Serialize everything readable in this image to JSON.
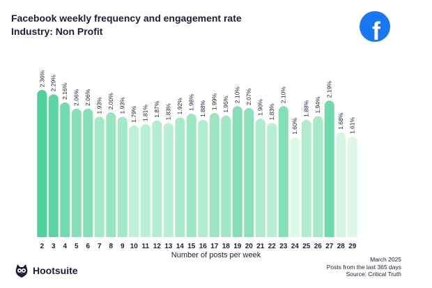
{
  "header": {
    "title": "Facebook weekly frequency and engagement rate",
    "subtitle": "Industry: Non Profit"
  },
  "brand": {
    "name": "Hootsuite",
    "icon": "hootsuite-owl-icon"
  },
  "logo": {
    "icon": "facebook-icon",
    "color": "#1877F2",
    "glyph": "f"
  },
  "footer": {
    "date": "March 2025",
    "period": "Posts from the last 365 days",
    "source": "Source: Critical Truth"
  },
  "chart_data": {
    "type": "bar",
    "title": "Facebook weekly frequency and engagement rate",
    "subtitle": "Industry: Non Profit",
    "xlabel": "Number of posts per week",
    "ylabel": "",
    "ylim": [
      0,
      2.36
    ],
    "grid": false,
    "categories": [
      "2",
      "3",
      "4",
      "5",
      "6",
      "7",
      "8",
      "9",
      "10",
      "11",
      "12",
      "13",
      "14",
      "15",
      "16",
      "17",
      "18",
      "19",
      "20",
      "21",
      "22",
      "23",
      "24",
      "25",
      "26",
      "27",
      "28",
      "29"
    ],
    "values": [
      2.36,
      2.29,
      2.16,
      2.06,
      2.06,
      1.93,
      2.0,
      1.93,
      1.79,
      1.81,
      1.87,
      1.83,
      1.92,
      1.98,
      1.88,
      1.99,
      1.95,
      2.1,
      2.07,
      1.9,
      1.83,
      2.1,
      1.6,
      1.88,
      1.94,
      2.19,
      1.68,
      1.61
    ],
    "labels": [
      "2.36%",
      "2.29%",
      "2.16%",
      "2.06%",
      "2.06%",
      "1.93%",
      "2.00%",
      "1.93%",
      "1.79%",
      "1.81%",
      "1.87%",
      "1.83%",
      "1.92%",
      "1.98%",
      "1.88%",
      "1.99%",
      "1.95%",
      "2.10%",
      "2.07%",
      "1.90%",
      "1.83%",
      "2.10%",
      "1.60%",
      "1.88%",
      "1.94%",
      "2.19%",
      "1.68%",
      "1.61%"
    ],
    "colors": [
      "#4fd19c",
      "#5bd6a3",
      "#74dbae",
      "#84dfb6",
      "#84dfb6",
      "#a3e9c7",
      "#97e5be",
      "#a3e9c7",
      "#bdf0d6",
      "#bbefd4",
      "#b2edd0",
      "#b8eed3",
      "#a9eaca",
      "#9ee6c2",
      "#b0edcf",
      "#9be5c0",
      "#a3e8c6",
      "#84dfb6",
      "#8ae1b9",
      "#aeeccd",
      "#b8eed3",
      "#84dfb6",
      "#def8e8",
      "#b0edcf",
      "#a6e9c8",
      "#6fdaab",
      "#d4f5e2",
      "#ddf8e7"
    ]
  }
}
